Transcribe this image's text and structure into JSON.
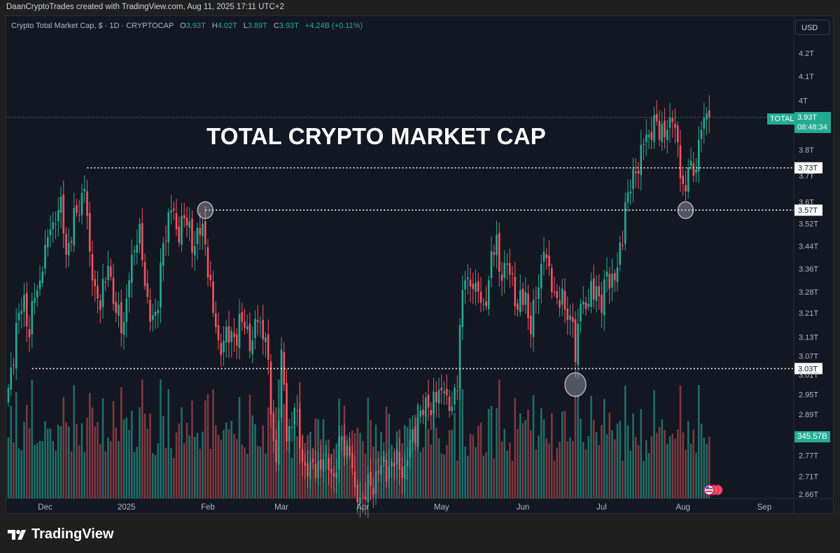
{
  "attribution": "DaanCryptoTrades created with TradingView.com, Aug 11, 2025 17:11 UTC+2",
  "legend": {
    "symbol": "Crypto Total Market Cap, $ · 1D · CRYPTOCAP",
    "o_label": "O",
    "o": "3.93T",
    "h_label": "H",
    "h": "4.02T",
    "l_label": "L",
    "l": "3.89T",
    "c_label": "C",
    "c": "3.93T",
    "change": "+4.24B (+0.11%)"
  },
  "currency_button": "USD",
  "annotation_title": "TOTAL CRYPTO MARKET CAP",
  "symbol_tag": "TOTAL",
  "last_price": "3.93T",
  "countdown": "08:48:34",
  "volume_label": "345.57B",
  "logo_text": "TradingView",
  "colors": {
    "up": "#22ab94",
    "down": "#f7525f",
    "bg": "#131722",
    "accent": "#22ab94"
  },
  "chart_data": {
    "type": "candlestick",
    "title": "Crypto Total Market Cap, $ · 1D · CRYPTOCAP",
    "scale": "log",
    "start_date": "2024-11-17",
    "ylim": [
      2.66,
      4.2
    ],
    "y_ticks": [
      "4.2T",
      "4.1T",
      "4T",
      "3.8T",
      "3.7T",
      "3.6T",
      "3.52T",
      "3.44T",
      "3.36T",
      "3.28T",
      "3.21T",
      "3.13T",
      "3.07T",
      "3.01T",
      "2.95T",
      "2.89T",
      "2.77T",
      "2.71T",
      "2.66T"
    ],
    "y_tick_values": [
      4.2,
      4.1,
      4.0,
      3.8,
      3.7,
      3.6,
      3.52,
      3.44,
      3.36,
      3.28,
      3.21,
      3.13,
      3.07,
      3.01,
      2.95,
      2.89,
      2.77,
      2.71,
      2.66
    ],
    "x_ticks": [
      {
        "label": "Dec",
        "day": 14
      },
      {
        "label": "2025",
        "day": 45
      },
      {
        "label": "Feb",
        "day": 76
      },
      {
        "label": "Mar",
        "day": 104
      },
      {
        "label": "Apr",
        "day": 135
      },
      {
        "label": "May",
        "day": 165
      },
      {
        "label": "Jun",
        "day": 196
      },
      {
        "label": "Jul",
        "day": 226
      },
      {
        "label": "Aug",
        "day": 257
      },
      {
        "label": "Sep",
        "day": 288
      }
    ],
    "close_anchors_day_price_T": [
      [
        0,
        2.97
      ],
      [
        4,
        3.21
      ],
      [
        6,
        3.27
      ],
      [
        8,
        3.13
      ],
      [
        10,
        3.26
      ],
      [
        13,
        3.35
      ],
      [
        16,
        3.5
      ],
      [
        18,
        3.52
      ],
      [
        20,
        3.62
      ],
      [
        22,
        3.41
      ],
      [
        23,
        3.45
      ],
      [
        26,
        3.56
      ],
      [
        29,
        3.65
      ],
      [
        31,
        3.42
      ],
      [
        33,
        3.3
      ],
      [
        35,
        3.22
      ],
      [
        38,
        3.37
      ],
      [
        41,
        3.21
      ],
      [
        44,
        3.18
      ],
      [
        47,
        3.41
      ],
      [
        50,
        3.52
      ],
      [
        52,
        3.3
      ],
      [
        54,
        3.18
      ],
      [
        57,
        3.22
      ],
      [
        59,
        3.45
      ],
      [
        62,
        3.57
      ],
      [
        64,
        3.5
      ],
      [
        67,
        3.54
      ],
      [
        71,
        3.44
      ],
      [
        74,
        3.52
      ],
      [
        77,
        3.32
      ],
      [
        78,
        3.21
      ],
      [
        80,
        3.12
      ],
      [
        86,
        3.13
      ],
      [
        89,
        3.18
      ],
      [
        93,
        3.12
      ],
      [
        95,
        3.18
      ],
      [
        98,
        3.13
      ],
      [
        100,
        2.89
      ],
      [
        102,
        2.75
      ],
      [
        104,
        3.09
      ],
      [
        106,
        2.81
      ],
      [
        109,
        2.91
      ],
      [
        111,
        2.79
      ],
      [
        114,
        2.71
      ],
      [
        121,
        2.77
      ],
      [
        124,
        2.71
      ],
      [
        127,
        2.82
      ],
      [
        130,
        2.77
      ],
      [
        132,
        2.68
      ],
      [
        135,
        2.65
      ],
      [
        141,
        2.72
      ],
      [
        146,
        2.75
      ],
      [
        151,
        2.74
      ],
      [
        156,
        2.88
      ],
      [
        160,
        2.91
      ],
      [
        166,
        2.96
      ],
      [
        168,
        2.9
      ],
      [
        171,
        2.96
      ],
      [
        172,
        3.17
      ],
      [
        174,
        3.32
      ],
      [
        177,
        3.29
      ],
      [
        181,
        3.24
      ],
      [
        183,
        3.32
      ],
      [
        186,
        3.48
      ],
      [
        187,
        3.35
      ],
      [
        189,
        3.38
      ],
      [
        192,
        3.34
      ],
      [
        194,
        3.22
      ],
      [
        197,
        3.28
      ],
      [
        199,
        3.14
      ],
      [
        201,
        3.26
      ],
      [
        204,
        3.42
      ],
      [
        207,
        3.28
      ],
      [
        209,
        3.26
      ],
      [
        212,
        3.22
      ],
      [
        215,
        3.18
      ],
      [
        216,
        3.05
      ],
      [
        218,
        3.24
      ],
      [
        221,
        3.24
      ],
      [
        224,
        3.3
      ],
      [
        226,
        3.21
      ],
      [
        228,
        3.35
      ],
      [
        231,
        3.32
      ],
      [
        234,
        3.44
      ],
      [
        235,
        3.6
      ],
      [
        237,
        3.64
      ],
      [
        239,
        3.71
      ],
      [
        241,
        3.82
      ],
      [
        244,
        3.86
      ],
      [
        246,
        3.94
      ],
      [
        248,
        3.84
      ],
      [
        251,
        3.88
      ],
      [
        253,
        3.91
      ],
      [
        255,
        3.83
      ],
      [
        256,
        3.69
      ],
      [
        258,
        3.64
      ],
      [
        259,
        3.73
      ],
      [
        261,
        3.7
      ],
      [
        263,
        3.84
      ],
      [
        264,
        3.88
      ],
      [
        265,
        3.93
      ],
      [
        267,
        3.93
      ]
    ],
    "last_close": 3.93,
    "last_volume": "345.57B",
    "horizontal_levels": [
      {
        "label": "3.73T",
        "value": 3.73,
        "from_day": 30
      },
      {
        "label": "3.57T",
        "value": 3.57,
        "from_day": 75
      },
      {
        "label": "3.03T",
        "value": 3.03,
        "from_day": 9
      }
    ],
    "highlight_circles_day_price": [
      [
        75,
        3.57
      ],
      [
        258,
        3.57
      ],
      [
        216,
        2.98
      ]
    ]
  }
}
